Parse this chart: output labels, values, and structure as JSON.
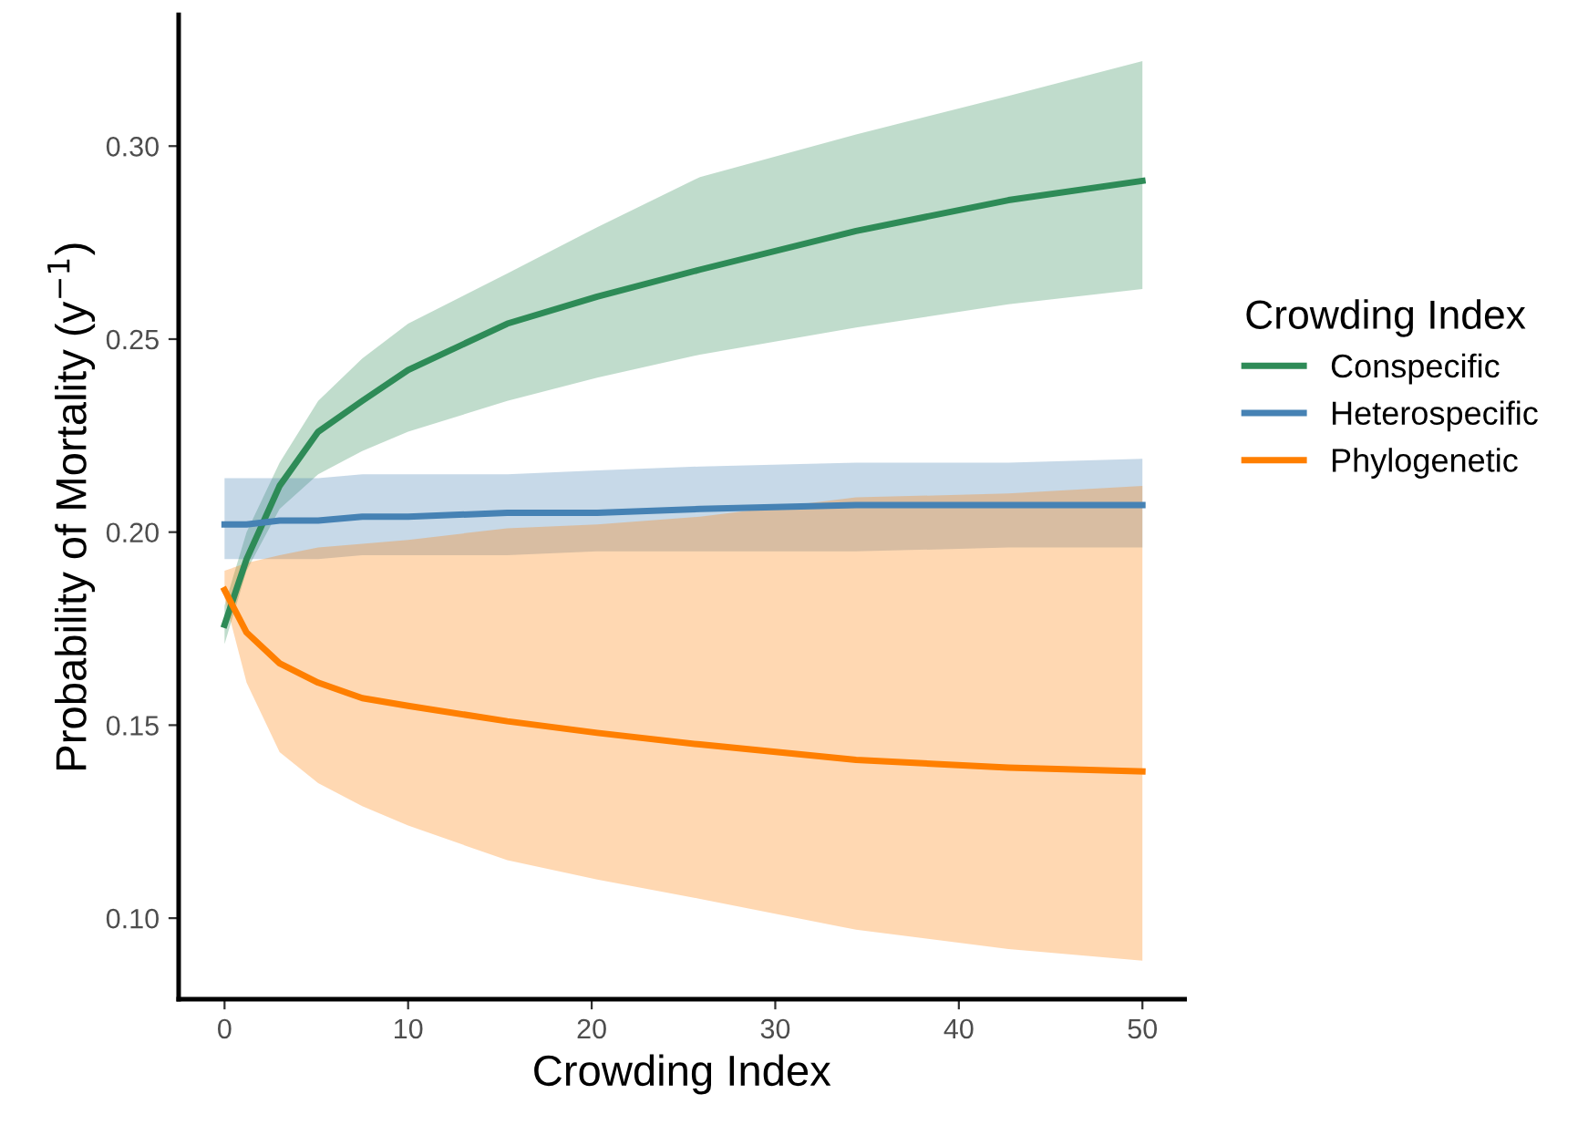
{
  "chart_data": {
    "type": "line",
    "xlabel": "Crowding Index",
    "ylabel": "Probability of Mortality (y$^{−1}$)",
    "legend_title": "Crowding Index",
    "legend": "right",
    "grid": false,
    "marker": "none",
    "line_style": "solid",
    "x": [
      0,
      1.2,
      3,
      5.1,
      7.5,
      10,
      15.4,
      20.3,
      25.9,
      34.4,
      42.7,
      50
    ],
    "xlim": [
      -2.5,
      52.3
    ],
    "xticks": [
      0,
      10,
      20,
      30,
      40,
      50
    ],
    "ylim": [
      0.079,
      0.334
    ],
    "yticks": [
      {
        "value": 0.1,
        "label": "0.10"
      },
      {
        "value": 0.15,
        "label": "0.15"
      },
      {
        "value": 0.2,
        "label": "0.20"
      },
      {
        "value": 0.25,
        "label": "0.25"
      },
      {
        "value": 0.3,
        "label": "0.30"
      }
    ],
    "series": [
      {
        "name": "Conspecific",
        "color": "#2e8b57",
        "values": [
          0.176,
          0.193,
          0.212,
          0.226,
          0.234,
          0.242,
          0.254,
          0.261,
          0.268,
          0.278,
          0.286,
          0.291
        ],
        "lower": [
          0.171,
          0.19,
          0.206,
          0.215,
          0.221,
          0.226,
          0.234,
          0.24,
          0.246,
          0.253,
          0.259,
          0.263
        ],
        "upper": [
          0.181,
          0.2,
          0.218,
          0.234,
          0.245,
          0.254,
          0.267,
          0.279,
          0.292,
          0.303,
          0.313,
          0.322
        ]
      },
      {
        "name": "Heterospecific",
        "color": "#4682b4",
        "values": [
          0.202,
          0.202,
          0.203,
          0.203,
          0.204,
          0.204,
          0.205,
          0.205,
          0.206,
          0.207,
          0.207,
          0.207
        ],
        "lower": [
          0.193,
          0.193,
          0.193,
          0.193,
          0.194,
          0.194,
          0.194,
          0.195,
          0.195,
          0.195,
          0.196,
          0.196
        ],
        "upper": [
          0.214,
          0.214,
          0.214,
          0.214,
          0.215,
          0.215,
          0.215,
          0.216,
          0.217,
          0.218,
          0.218,
          0.219
        ]
      },
      {
        "name": "Phylogenetic",
        "color": "#ff7f00",
        "values": [
          0.185,
          0.174,
          0.166,
          0.161,
          0.157,
          0.155,
          0.151,
          0.148,
          0.145,
          0.141,
          0.139,
          0.138
        ],
        "lower": [
          0.183,
          0.161,
          0.143,
          0.135,
          0.129,
          0.124,
          0.115,
          0.11,
          0.105,
          0.097,
          0.092,
          0.089
        ],
        "upper": [
          0.19,
          0.192,
          0.194,
          0.196,
          0.197,
          0.198,
          0.201,
          0.202,
          0.204,
          0.209,
          0.21,
          0.212
        ]
      }
    ]
  }
}
